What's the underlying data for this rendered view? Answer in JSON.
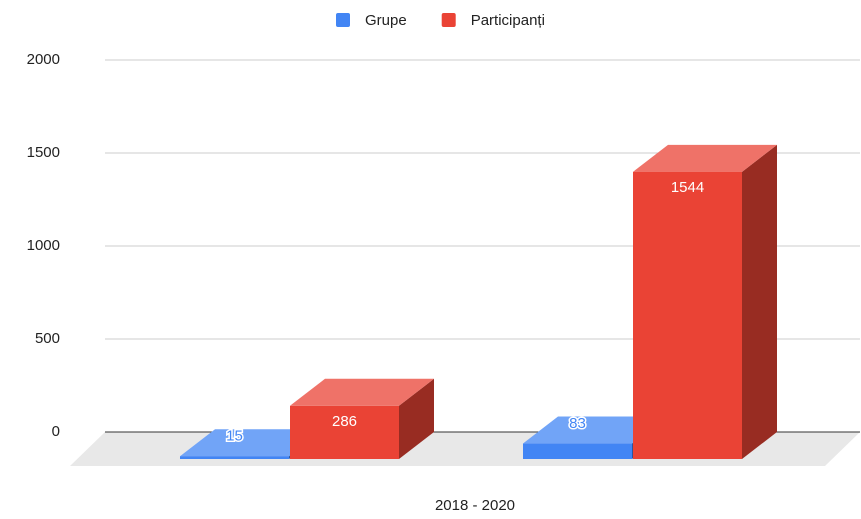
{
  "chart_data": {
    "type": "bar3d",
    "x_label": "2018 - 2020",
    "categories": [
      null,
      null
    ],
    "series": [
      {
        "name": "Grupe",
        "color": "#4285f4",
        "values": [
          15,
          83
        ]
      },
      {
        "name": "Participanți",
        "color": "#ea4335",
        "values": [
          286,
          1544
        ]
      }
    ],
    "ylim": [
      0,
      2000
    ],
    "yticks": [
      0,
      500,
      1000,
      1500,
      2000
    ],
    "grid": true,
    "legend": "top"
  }
}
